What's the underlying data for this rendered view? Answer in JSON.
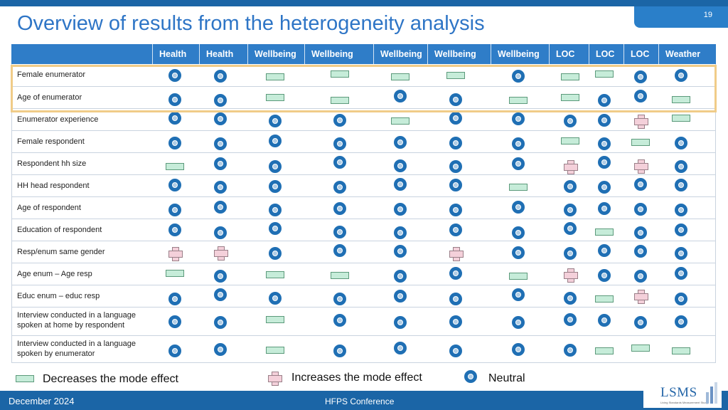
{
  "slide": {
    "number": "19",
    "title": "Overview of results from the heterogeneity analysis"
  },
  "table": {
    "columns": [
      "Health",
      "Health",
      "Wellbeing",
      "Wellbeing",
      "Wellbeing",
      "Wellbeing",
      "Wellbeing",
      "LOC",
      "LOC",
      "LOC",
      "Weather"
    ],
    "rows": [
      {
        "label": "Female enumerator",
        "cells": [
          "neutral",
          "neutral",
          "decrease",
          "decrease",
          "decrease",
          "decrease",
          "neutral",
          "decrease",
          "decrease",
          "neutral",
          "neutral"
        ]
      },
      {
        "label": "Age of enumerator",
        "cells": [
          "neutral",
          "neutral",
          "decrease",
          "decrease",
          "neutral",
          "neutral",
          "decrease",
          "decrease",
          "neutral",
          "neutral",
          "decrease"
        ]
      },
      {
        "label": "Enumerator experience",
        "cells": [
          "neutral",
          "neutral",
          "neutral",
          "neutral",
          "decrease",
          "neutral",
          "neutral",
          "neutral",
          "neutral",
          "increase",
          "decrease"
        ]
      },
      {
        "label": "Female respondent",
        "cells": [
          "neutral",
          "neutral",
          "neutral",
          "neutral",
          "neutral",
          "neutral",
          "neutral",
          "decrease",
          "neutral",
          "decrease",
          "neutral"
        ]
      },
      {
        "label": "Respondent hh size",
        "cells": [
          "decrease",
          "neutral",
          "neutral",
          "neutral",
          "neutral",
          "neutral",
          "neutral",
          "increase",
          "neutral",
          "increase",
          "neutral"
        ]
      },
      {
        "label": "HH head respondent",
        "cells": [
          "neutral",
          "neutral",
          "neutral",
          "neutral",
          "neutral",
          "neutral",
          "decrease",
          "neutral",
          "neutral",
          "neutral",
          "neutral"
        ]
      },
      {
        "label": "Age of respondent",
        "cells": [
          "neutral",
          "neutral",
          "neutral",
          "neutral",
          "neutral",
          "neutral",
          "neutral",
          "neutral",
          "neutral",
          "neutral",
          "neutral"
        ]
      },
      {
        "label": "Education of respondent",
        "cells": [
          "neutral",
          "neutral",
          "neutral",
          "neutral",
          "neutral",
          "neutral",
          "neutral",
          "neutral",
          "decrease",
          "neutral",
          "neutral"
        ]
      },
      {
        "label": "Resp/enum same gender",
        "cells": [
          "increase",
          "increase",
          "neutral",
          "neutral",
          "neutral",
          "increase",
          "neutral",
          "neutral",
          "neutral",
          "neutral",
          "neutral"
        ]
      },
      {
        "label": "Age enum – Age resp",
        "cells": [
          "decrease",
          "neutral",
          "decrease",
          "decrease",
          "neutral",
          "neutral",
          "decrease",
          "increase",
          "neutral",
          "neutral",
          "neutral"
        ]
      },
      {
        "label": "Educ enum – educ resp",
        "cells": [
          "neutral",
          "neutral",
          "neutral",
          "neutral",
          "neutral",
          "neutral",
          "neutral",
          "neutral",
          "decrease",
          "increase",
          "neutral"
        ]
      },
      {
        "label": "Interview conducted in a language spoken at home by respondent",
        "cells": [
          "neutral",
          "neutral",
          "decrease",
          "neutral",
          "neutral",
          "neutral",
          "neutral",
          "neutral",
          "neutral",
          "neutral",
          "neutral"
        ]
      },
      {
        "label": "Interview conducted in a language spoken by enumerator",
        "cells": [
          "neutral",
          "neutral",
          "decrease",
          "neutral",
          "neutral",
          "neutral",
          "neutral",
          "neutral",
          "decrease",
          "decrease",
          "decrease"
        ]
      }
    ]
  },
  "legend": {
    "decrease": "Decreases the mode effect",
    "increase": "Increases the mode effect",
    "neutral": "Neutral"
  },
  "colors": {
    "header": "#2f7dc8",
    "neutral_ring": "#1f6fb4",
    "decrease_fill": "#c6ecd9",
    "increase_fill": "#f4d0da",
    "highlight": "#f0cc88"
  },
  "footer": {
    "date": "December 2024",
    "event": "HFPS Conference"
  },
  "logo": {
    "text": "LSMS",
    "subtitle": "Living Standards Measurement Study"
  }
}
